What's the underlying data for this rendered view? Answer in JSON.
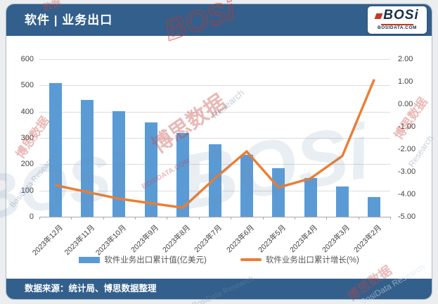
{
  "theme": {
    "header_bg": "#335F8C",
    "canvas_bg": "#ECEDEF",
    "card_border": "#A8BCCD",
    "bar_color": "#5B9BD5",
    "line_color": "#ED7D31",
    "grid_color": "#DCDCDC",
    "axis_color": "#A6A6A6",
    "label_color": "#404040"
  },
  "header": {
    "title": "软件 | 业务出口",
    "logo": {
      "text": "BOSi",
      "subtext": "BOSIDATA.COM"
    }
  },
  "source_bar": {
    "text": "数据来源：统计局、博思数据整理"
  },
  "watermarks": {
    "texts": [
      "BOSi",
      "博思数据",
      "BosiData Research",
      "BOSIDATA.COM",
      "数据",
      "Research"
    ]
  },
  "chart_data": {
    "type": "bar+line combo",
    "title": "软件 | 业务出口",
    "categories": [
      "2023年12月",
      "2023年11月",
      "2023年10月",
      "2023年9月",
      "2023年8月",
      "2023年7月",
      "2023年6月",
      "2023年5月",
      "2023年4月",
      "2023年3月",
      "2023年2月"
    ],
    "series": [
      {
        "name": "软件业务出口累计值(亿美元)",
        "type": "bar",
        "axis": "left",
        "color": "#5B9BD5",
        "values": [
          510,
          445,
          403,
          359,
          318,
          276,
          235,
          184,
          147,
          114,
          75
        ]
      },
      {
        "name": "软件业务出口累计增长(%)",
        "type": "line",
        "axis": "right",
        "color": "#ED7D31",
        "values": [
          -3.6,
          -3.9,
          -4.2,
          -4.4,
          -4.6,
          -3.3,
          -2.1,
          -3.7,
          -3.3,
          -2.3,
          1.1
        ]
      }
    ],
    "left_axis": {
      "min": 0,
      "max": 600,
      "step": 100,
      "tick_labels": [
        "0",
        "100",
        "200",
        "300",
        "400",
        "500",
        "600"
      ]
    },
    "right_axis": {
      "min": -5,
      "max": 2,
      "step": 1,
      "tick_labels": [
        "-5.00",
        "-4.00",
        "-3.00",
        "-2.00",
        "-1.00",
        "0.00",
        "1.00",
        "2.00"
      ]
    },
    "grid": true,
    "legend_position": "bottom"
  }
}
